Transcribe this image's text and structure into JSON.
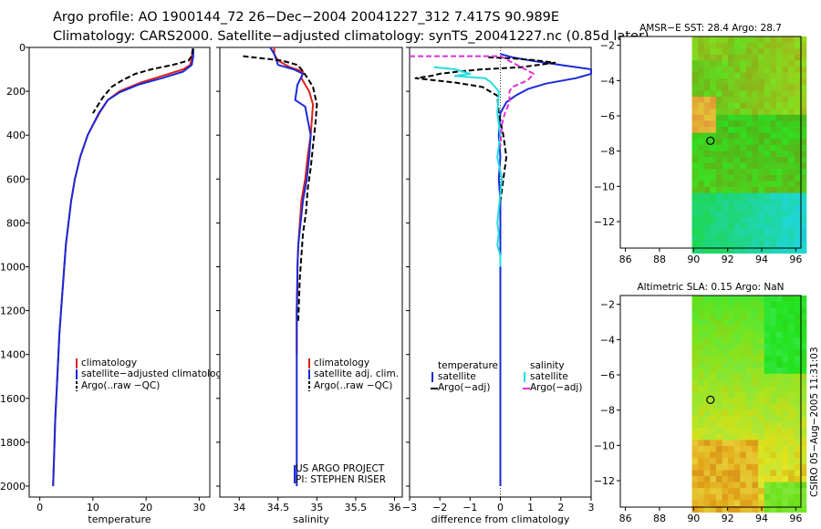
{
  "figure": {
    "title_line1": "Argo profile: AO 1900144_72 26−Dec−2004 20041227_312 7.417S 90.989E",
    "title_line2": "Climatology: CARS2000. Satellite−adjusted climatology: synTS_20041227.nc (0.85d later)",
    "credit": "CSIRO 05−Aug−2005 11:31:03"
  },
  "colors": {
    "climatology": "#e0201a",
    "satellite": "#1a2ad8",
    "argo": "#000000",
    "satellite_salinity": "#22dede",
    "argo_adj_salinity": "#e030d8"
  },
  "chart_data": [
    {
      "id": "temperature",
      "type": "line",
      "xlabel": "temperature",
      "ylabel": "",
      "xlim": [
        -2,
        32
      ],
      "ylim": [
        2050,
        0
      ],
      "xticks": [
        0,
        10,
        20,
        30
      ],
      "yticks": [
        0,
        200,
        400,
        600,
        800,
        1000,
        1200,
        1400,
        1600,
        1800,
        2000
      ],
      "legend": {
        "placement": "lower-right",
        "entries": [
          "climatology",
          "satellite−adjusted climatology",
          "Argo(..raw −QC)"
        ]
      },
      "series": [
        {
          "name": "climatology",
          "color_key": "climatology",
          "dash": "solid",
          "x": [
            28.7,
            28.6,
            28.3,
            27.0,
            23.0,
            19.0,
            15.0,
            12.8,
            11.2,
            9.0,
            7.6,
            6.6,
            5.9,
            4.9,
            4.3,
            3.7,
            3.3,
            2.9,
            2.7,
            2.5
          ],
          "y": [
            20,
            50,
            80,
            100,
            130,
            160,
            200,
            240,
            300,
            400,
            500,
            600,
            700,
            900,
            1100,
            1300,
            1500,
            1700,
            1850,
            2000
          ]
        },
        {
          "name": "satellite−adjusted climatology",
          "color_key": "satellite",
          "dash": "solid",
          "x": [
            28.9,
            28.9,
            28.6,
            27.0,
            23.0,
            18.5,
            15.0,
            12.8,
            11.1,
            9.0,
            7.6,
            6.6,
            5.9,
            4.9,
            4.3,
            3.7,
            3.3,
            2.9,
            2.7,
            2.5
          ],
          "y": [
            5,
            40,
            80,
            110,
            140,
            170,
            205,
            240,
            300,
            400,
            500,
            600,
            700,
            900,
            1100,
            1300,
            1500,
            1700,
            1850,
            2000
          ]
        },
        {
          "name": "Argo(..raw −QC)",
          "color_key": "argo",
          "dash": "dashed",
          "x": [
            28.8,
            28.6,
            28.0,
            25.0,
            21.0,
            18.0,
            15.5,
            13.5,
            11.8,
            10.0
          ],
          "y": [
            5,
            40,
            60,
            80,
            100,
            120,
            150,
            180,
            230,
            300
          ]
        }
      ]
    },
    {
      "id": "salinity",
      "type": "line",
      "xlabel": "salinity",
      "ylabel": "",
      "xlim": [
        33.75,
        36.1
      ],
      "ylim": [
        2050,
        0
      ],
      "xticks": [
        34,
        34.5,
        35,
        35.5,
        36
      ],
      "legend": {
        "placement": "lower-right",
        "entries": [
          "climatology",
          "satellite adj. clim.",
          "Argo(..raw −QC)"
        ]
      },
      "annotations": [
        "US ARGO PROJECT",
        "PI: STEPHEN RISER"
      ],
      "series": [
        {
          "name": "climatology",
          "color_key": "climatology",
          "dash": "solid",
          "x": [
            34.45,
            34.45,
            34.5,
            34.65,
            34.82,
            34.8,
            34.9,
            34.95,
            34.92,
            34.88,
            34.85,
            34.8,
            34.78,
            34.76,
            34.75,
            34.75,
            34.74,
            34.74,
            34.74
          ],
          "y": [
            0,
            30,
            60,
            90,
            110,
            140,
            200,
            260,
            400,
            500,
            600,
            700,
            800,
            900,
            1000,
            1100,
            1200,
            1350,
            1400
          ]
        },
        {
          "name": "satellite adj. clim.",
          "color_key": "satellite",
          "dash": "solid",
          "x": [
            34.4,
            34.45,
            34.5,
            34.7,
            34.82,
            34.75,
            34.72,
            34.85,
            34.92,
            34.9,
            34.87,
            34.82,
            34.79,
            34.76,
            34.75,
            34.74,
            34.74,
            34.74,
            34.74,
            34.74
          ],
          "y": [
            0,
            30,
            80,
            100,
            120,
            170,
            240,
            270,
            400,
            500,
            600,
            700,
            800,
            900,
            1000,
            1200,
            1400,
            1600,
            1800,
            2000
          ]
        },
        {
          "name": "Argo(..raw −QC)",
          "color_key": "argo",
          "dash": "dashed",
          "x": [
            34.05,
            34.3,
            34.55,
            34.75,
            34.8,
            34.88,
            34.95,
            35.0,
            34.98,
            34.95,
            34.92,
            34.88,
            34.86,
            34.82,
            34.8,
            34.78,
            34.77,
            34.76
          ],
          "y": [
            40,
            50,
            60,
            80,
            100,
            140,
            180,
            260,
            350,
            450,
            550,
            650,
            750,
            850,
            950,
            1050,
            1150,
            1250
          ]
        }
      ]
    },
    {
      "id": "difference",
      "type": "line",
      "xlabel": "difference from climatology",
      "ylabel": "",
      "xlim": [
        -3,
        3
      ],
      "ylim": [
        2050,
        0
      ],
      "xticks": [
        -3,
        -2,
        -1,
        0,
        1,
        2,
        3
      ],
      "legend": {
        "placement": "lower-center",
        "entries": [
          "temperature",
          "satellite",
          "Argo(−adj)",
          "salinity",
          "satellite",
          "Argo(−adj)"
        ]
      },
      "series": [
        {
          "name": "temperature satellite",
          "color_key": "satellite",
          "dash": "solid",
          "x": [
            0.0,
            0.4,
            1.0,
            2.0,
            3.0,
            3.0,
            2.5,
            1.5,
            0.9,
            0.5,
            0.2,
            0.0,
            -0.05,
            0.0,
            -0.05,
            0.0,
            0.0,
            0.0,
            0.0,
            0.0
          ],
          "y": [
            30,
            45,
            60,
            80,
            100,
            120,
            140,
            165,
            190,
            220,
            250,
            300,
            400,
            500,
            600,
            700,
            800,
            1000,
            1500,
            2000
          ]
        },
        {
          "name": "temperature Argo(−adj)",
          "color_key": "argo",
          "dash": "dashed",
          "x": [
            -0.4,
            0.4,
            1.1,
            1.8,
            0.7,
            -0.6,
            -1.4,
            -2.0,
            -2.3,
            -2.8,
            -1.5,
            -0.6,
            -0.1,
            -0.05,
            0.1,
            0.2,
            0.1,
            0.0
          ],
          "y": [
            45,
            50,
            58,
            70,
            90,
            100,
            110,
            120,
            130,
            140,
            160,
            180,
            220,
            300,
            400,
            500,
            600,
            700
          ]
        },
        {
          "name": "salinity satellite",
          "color_key": "satellite_salinity",
          "dash": "solid",
          "x": [
            -2.2,
            -1.5,
            -1.0,
            -1.5,
            -0.5,
            -0.3,
            -0.05,
            -0.1,
            0.0,
            -0.1,
            0.05,
            -0.1,
            -0.05,
            -0.1,
            0.0,
            0.0
          ],
          "y": [
            90,
            100,
            120,
            130,
            140,
            160,
            200,
            300,
            400,
            500,
            600,
            800,
            850,
            900,
            950,
            1000
          ]
        },
        {
          "name": "salinity Argo(−adj)",
          "color_key": "argo_adj_salinity",
          "dash": "dashed",
          "x": [
            -3.0,
            -2.0,
            -1.0,
            0.0,
            1.1,
            0.9,
            0.4,
            0.3,
            0.3,
            0.15,
            0.05,
            0.0
          ],
          "y": [
            40,
            40,
            40,
            40,
            120,
            150,
            180,
            200,
            250,
            300,
            350,
            450
          ]
        }
      ]
    },
    {
      "id": "sst_map",
      "type": "heatmap",
      "title": "AMSR−E SST: 28.4 Argo: 28.7",
      "xlim": [
        85.7,
        96.3
      ],
      "ylim": [
        -13.5,
        -1.5
      ],
      "xticks": [
        86,
        88,
        90,
        92,
        94,
        96
      ],
      "yticks": [
        -2,
        -4,
        -6,
        -8,
        -10,
        -12
      ],
      "data_xmin": 89.9,
      "float_position": {
        "lon": 90.989,
        "lat": -7.417
      }
    },
    {
      "id": "sla_map",
      "type": "heatmap",
      "title": "Altimetric SLA: 0.15 Argo: NaN",
      "xlim": [
        85.7,
        96.3
      ],
      "ylim": [
        -13.5,
        -1.5
      ],
      "xticks": [
        86,
        88,
        90,
        92,
        94,
        96
      ],
      "yticks": [
        -2,
        -4,
        -6,
        -8,
        -10,
        -12
      ],
      "data_xmin": 89.9,
      "float_position": {
        "lon": 90.989,
        "lat": -7.417
      }
    }
  ]
}
